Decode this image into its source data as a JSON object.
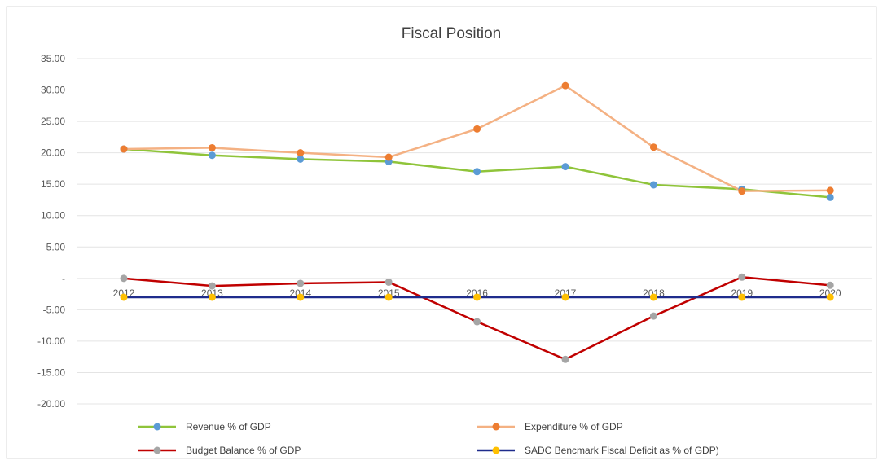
{
  "chart_data": {
    "type": "line",
    "title": "Fiscal Position",
    "xlabel": "",
    "ylabel": "",
    "ylim": [
      -20,
      35
    ],
    "y_ticks": [
      35,
      30,
      25,
      20,
      15,
      10,
      5,
      0,
      -5,
      -10,
      -15,
      -20
    ],
    "y_tick_labels": [
      "35.00",
      "30.00",
      "25.00",
      "20.00",
      "15.00",
      "10.00",
      "5.00",
      "-",
      "-5.00",
      "-10.00",
      "-15.00",
      "-20.00"
    ],
    "categories": [
      "2012",
      "2013",
      "2014",
      "2015",
      "2016",
      "2017",
      "2018",
      "2019",
      "2020"
    ],
    "grid": true,
    "legend_position": "bottom",
    "series": [
      {
        "name": "Revenue % of GDP",
        "line_color": "#8fc43a",
        "marker_color": "#5b9bd5",
        "values": [
          20.6,
          19.6,
          19.0,
          18.6,
          17.0,
          17.8,
          14.9,
          14.2,
          12.9
        ]
      },
      {
        "name": "Expenditure  % of GDP",
        "line_color": "#f4b183",
        "marker_color": "#ed7d31",
        "values": [
          20.6,
          20.8,
          20.0,
          19.3,
          23.8,
          30.7,
          20.9,
          13.9,
          14.0
        ]
      },
      {
        "name": "Budget Balance % of GDP",
        "line_color": "#c00000",
        "marker_color": "#a5a5a5",
        "values": [
          0.0,
          -1.2,
          -0.8,
          -0.6,
          -6.9,
          -12.9,
          -6.0,
          0.2,
          -1.1
        ]
      },
      {
        "name": "SADC Bencmark Fiscal Deficit as % of GDP)",
        "line_color": "#1f2c8c",
        "marker_color": "#ffc000",
        "values": [
          -3.0,
          -3.0,
          -3.0,
          -3.0,
          -3.0,
          -3.0,
          -3.0,
          -3.0,
          -3.0
        ]
      }
    ]
  }
}
